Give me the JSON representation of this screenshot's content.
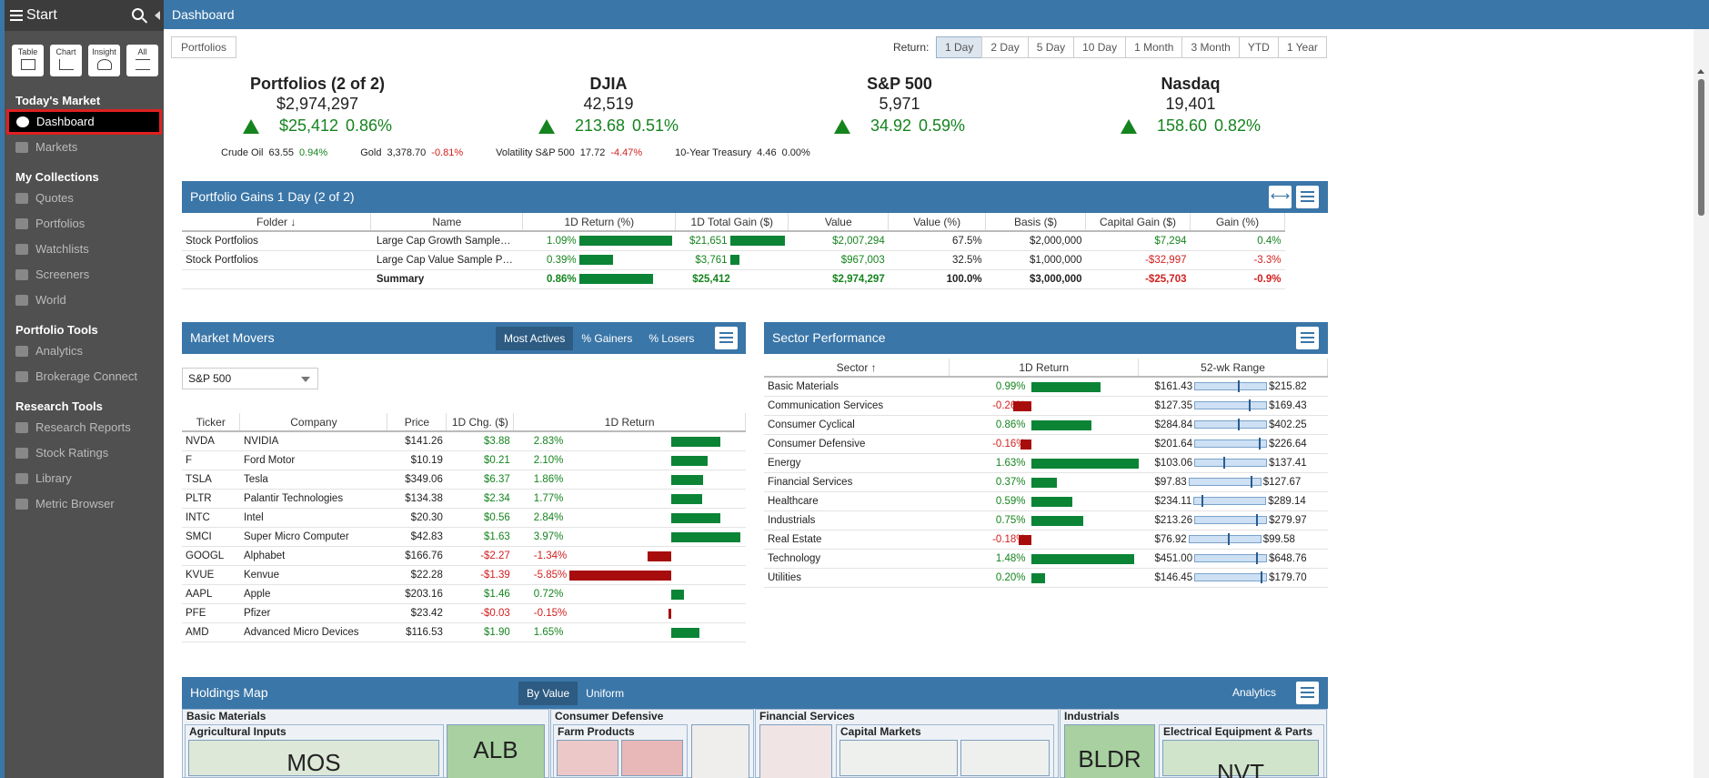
{
  "sidebar": {
    "title": "Start",
    "buttons": [
      {
        "label": "Table",
        "icon": "table-icon"
      },
      {
        "label": "Chart",
        "icon": "chart-icon"
      },
      {
        "label": "Insight",
        "icon": "insight-icon"
      },
      {
        "label": "All",
        "icon": "list-icon"
      }
    ],
    "sections": [
      {
        "title": "Today's Market",
        "items": [
          {
            "label": "Dashboard",
            "icon": "dashboard-icon",
            "active": true
          },
          {
            "label": "Markets",
            "icon": "markets-icon"
          }
        ]
      },
      {
        "title": "My Collections",
        "items": [
          {
            "label": "Quotes",
            "icon": "quotes-icon"
          },
          {
            "label": "Portfolios",
            "icon": "portfolios-icon"
          },
          {
            "label": "Watchlists",
            "icon": "watchlists-icon"
          },
          {
            "label": "Screeners",
            "icon": "screeners-icon"
          },
          {
            "label": "World",
            "icon": "world-icon"
          }
        ]
      },
      {
        "title": "Portfolio Tools",
        "items": [
          {
            "label": "Analytics",
            "icon": "analytics-icon"
          },
          {
            "label": "Brokerage Connect",
            "icon": "bank-icon"
          }
        ]
      },
      {
        "title": "Research Tools",
        "items": [
          {
            "label": "Research Reports",
            "icon": "reports-icon"
          },
          {
            "label": "Stock Ratings",
            "icon": "ratings-icon"
          },
          {
            "label": "Library",
            "icon": "library-icon"
          },
          {
            "label": "Metric Browser",
            "icon": "metric-icon"
          }
        ]
      }
    ]
  },
  "topbar": {
    "title": "Dashboard"
  },
  "toolbar": {
    "portfolios_btn": "Portfolios",
    "return_label": "Return:",
    "return_options": [
      "1 Day",
      "2 Day",
      "5 Day",
      "10 Day",
      "1 Month",
      "3 Month",
      "YTD",
      "1 Year"
    ],
    "return_selected": "1 Day"
  },
  "summaries": [
    {
      "title": "Portfolios (2 of 2)",
      "value": "$2,974,297",
      "change": "$25,412",
      "pct": "0.86%"
    },
    {
      "title": "DJIA",
      "value": "42,519",
      "change": "213.68",
      "pct": "0.51%"
    },
    {
      "title": "S&P 500",
      "value": "5,971",
      "change": "34.92",
      "pct": "0.59%"
    },
    {
      "title": "Nasdaq",
      "value": "19,401",
      "change": "158.60",
      "pct": "0.82%"
    }
  ],
  "commodities": [
    {
      "name": "Crude Oil",
      "value": "63.55",
      "pct": "0.94%",
      "dir": "pos"
    },
    {
      "name": "Gold",
      "value": "3,378.70",
      "pct": "-0.81%",
      "dir": "neg"
    },
    {
      "name": "Volatility S&P 500",
      "value": "17.72",
      "pct": "-4.47%",
      "dir": "neg"
    },
    {
      "name": "10-Year Treasury",
      "value": "4.46",
      "pct": "0.00%",
      "dir": "zero"
    }
  ],
  "gains": {
    "title": "Portfolio Gains 1 Day (2 of 2)",
    "columns": [
      "Folder",
      "Name",
      "1D Return (%)",
      "1D Total Gain ($)",
      "Value",
      "Value (%)",
      "Basis ($)",
      "Capital Gain ($)",
      "Gain (%)"
    ],
    "rows": [
      {
        "folder": "Stock Portfolios",
        "name": "Large Cap Growth Sample…",
        "ret": "1.09%",
        "ret_frac": 1.0,
        "gain": "$21,651",
        "gain_frac": 1.0,
        "value": "$2,007,294",
        "value_pct": "67.5%",
        "basis": "$2,000,000",
        "cap_gain": "$7,294",
        "cap_dir": "pos",
        "gain_pct": "0.4%"
      },
      {
        "folder": "Stock Portfolios",
        "name": "Large Cap Value Sample P…",
        "ret": "0.39%",
        "ret_frac": 0.36,
        "gain": "$3,761",
        "gain_frac": 0.17,
        "value": "$967,003",
        "value_pct": "32.5%",
        "basis": "$1,000,000",
        "cap_gain": "-$32,997",
        "cap_dir": "neg",
        "gain_pct": "-3.3%"
      }
    ],
    "summary": {
      "label": "Summary",
      "ret": "0.86%",
      "ret_frac": 0.79,
      "gain": "$25,412",
      "value": "$2,974,297",
      "value_pct": "100.0%",
      "basis": "$3,000,000",
      "cap_gain": "-$25,703",
      "gain_pct": "-0.9%"
    }
  },
  "movers": {
    "title": "Market Movers",
    "tabs": [
      "Most Actives",
      "% Gainers",
      "% Losers"
    ],
    "active_tab": "Most Actives",
    "index_select": "S&P 500",
    "columns": [
      "Ticker",
      "Company",
      "Price",
      "1D Chg. ($)",
      "1D Return"
    ],
    "rows": [
      {
        "ticker": "NVDA",
        "company": "NVIDIA",
        "price": "$141.26",
        "chg": "$3.88",
        "ret": "2.83%",
        "r": 2.83
      },
      {
        "ticker": "F",
        "company": "Ford Motor",
        "price": "$10.19",
        "chg": "$0.21",
        "ret": "2.10%",
        "r": 2.1
      },
      {
        "ticker": "TSLA",
        "company": "Tesla",
        "price": "$349.06",
        "chg": "$6.37",
        "ret": "1.86%",
        "r": 1.86
      },
      {
        "ticker": "PLTR",
        "company": "Palantir Technologies",
        "price": "$134.38",
        "chg": "$2.34",
        "ret": "1.77%",
        "r": 1.77
      },
      {
        "ticker": "INTC",
        "company": "Intel",
        "price": "$20.30",
        "chg": "$0.56",
        "ret": "2.84%",
        "r": 2.84
      },
      {
        "ticker": "SMCI",
        "company": "Super Micro Computer",
        "price": "$42.83",
        "chg": "$1.63",
        "ret": "3.97%",
        "r": 3.97
      },
      {
        "ticker": "GOOGL",
        "company": "Alphabet",
        "price": "$166.76",
        "chg": "-$2.27",
        "ret": "-1.34%",
        "r": -1.34
      },
      {
        "ticker": "KVUE",
        "company": "Kenvue",
        "price": "$22.28",
        "chg": "-$1.39",
        "ret": "-5.85%",
        "r": -5.85
      },
      {
        "ticker": "AAPL",
        "company": "Apple",
        "price": "$203.16",
        "chg": "$1.46",
        "ret": "0.72%",
        "r": 0.72
      },
      {
        "ticker": "PFE",
        "company": "Pfizer",
        "price": "$23.42",
        "chg": "-$0.03",
        "ret": "-0.15%",
        "r": -0.15
      },
      {
        "ticker": "AMD",
        "company": "Advanced Micro Devices",
        "price": "$116.53",
        "chg": "$1.90",
        "ret": "1.65%",
        "r": 1.65
      }
    ]
  },
  "sectors": {
    "title": "Sector Performance",
    "columns": [
      "Sector",
      "1D Return",
      "52-wk Range"
    ],
    "rows": [
      {
        "name": "Basic Materials",
        "ret": "0.99%",
        "r": 0.99,
        "low": "$161.43",
        "high": "$215.82",
        "pos": 0.62
      },
      {
        "name": "Communication Services",
        "ret": "-0.26%",
        "r": -0.26,
        "low": "$127.35",
        "high": "$169.43",
        "pos": 0.78
      },
      {
        "name": "Consumer Cyclical",
        "ret": "0.86%",
        "r": 0.86,
        "low": "$284.84",
        "high": "$402.25",
        "pos": 0.62
      },
      {
        "name": "Consumer Defensive",
        "ret": "-0.16%",
        "r": -0.16,
        "low": "$201.64",
        "high": "$226.64",
        "pos": 0.92
      },
      {
        "name": "Energy",
        "ret": "1.63%",
        "r": 1.63,
        "low": "$103.06",
        "high": "$137.41",
        "pos": 0.4
      },
      {
        "name": "Financial Services",
        "ret": "0.37%",
        "r": 0.37,
        "low": "$97.83",
        "high": "$127.67",
        "pos": 0.88
      },
      {
        "name": "Healthcare",
        "ret": "0.59%",
        "r": 0.59,
        "low": "$234.11",
        "high": "$289.14",
        "pos": 0.1
      },
      {
        "name": "Industrials",
        "ret": "0.75%",
        "r": 0.75,
        "low": "$213.26",
        "high": "$279.97",
        "pos": 0.88
      },
      {
        "name": "Real Estate",
        "ret": "-0.18%",
        "r": -0.18,
        "low": "$76.92",
        "high": "$99.58",
        "pos": 0.55
      },
      {
        "name": "Technology",
        "ret": "1.48%",
        "r": 1.48,
        "low": "$451.00",
        "high": "$648.76",
        "pos": 0.88
      },
      {
        "name": "Utilities",
        "ret": "0.20%",
        "r": 0.2,
        "low": "$146.45",
        "high": "$179.70",
        "pos": 0.95
      }
    ]
  },
  "holdings": {
    "title": "Holdings Map",
    "tabs": [
      "By Value",
      "Uniform"
    ],
    "active_tab": "By Value",
    "analytics_label": "Analytics",
    "groups": [
      "Basic Materials",
      "Consumer Defensive",
      "Financial Services",
      "Industrials"
    ],
    "subgroups": [
      "Agricultural Inputs",
      "Farm Products",
      "Capital Markets",
      "Electrical Equipment & Parts"
    ],
    "tiles": [
      "MOS",
      "ALB",
      "BLDR",
      "NVT"
    ]
  },
  "colors": {
    "accent": "#3a76a8",
    "positive": "#15841e",
    "negative": "#d21f1f",
    "bar_pos": "#0b8436",
    "bar_neg": "#a80d0d"
  }
}
